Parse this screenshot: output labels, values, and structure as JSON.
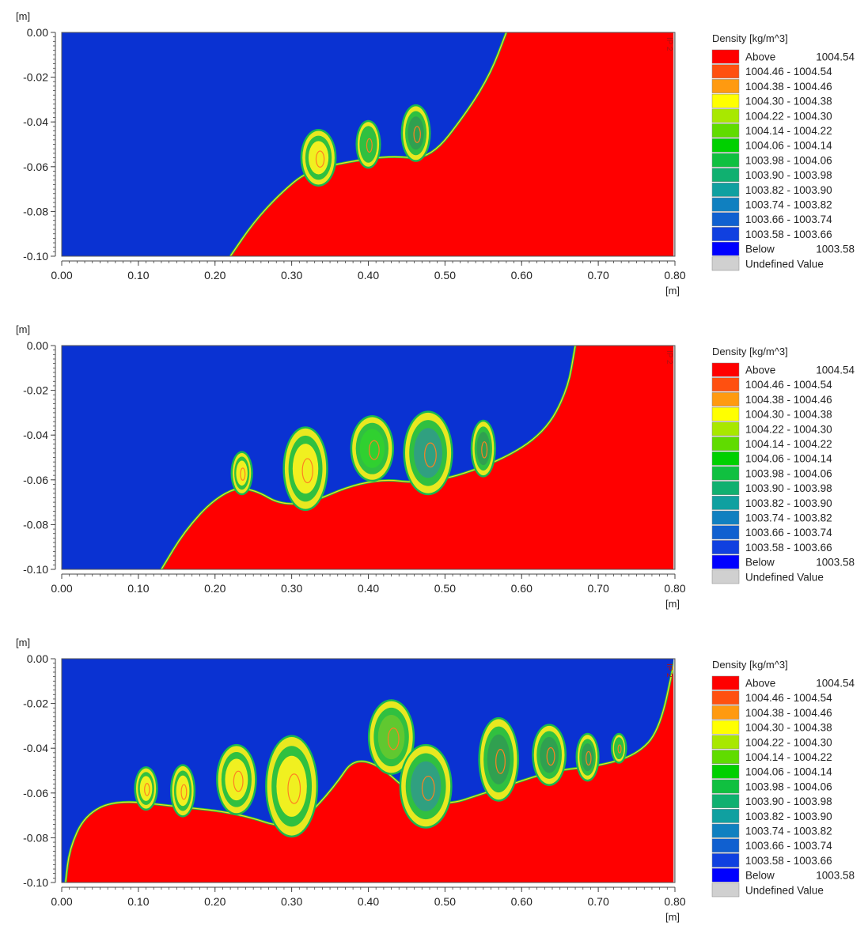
{
  "chart_data": [
    {
      "type": "heatmap",
      "title": "",
      "xlabel": "[m]",
      "ylabel": "[m]",
      "xlim": [
        0.0,
        0.8
      ],
      "ylim": [
        -0.1,
        0.0
      ],
      "xticks": [
        "0.00",
        "0.10",
        "0.20",
        "0.30",
        "0.40",
        "0.50",
        "0.60",
        "0.70",
        "0.80"
      ],
      "yticks": [
        "0.00",
        "-0.02",
        "-0.04",
        "-0.06",
        "-0.08",
        "-0.10"
      ],
      "side_label": "IP 2",
      "interface": [
        [
          0.22,
          -0.1
        ],
        [
          0.25,
          -0.085
        ],
        [
          0.285,
          -0.072
        ],
        [
          0.32,
          -0.062
        ],
        [
          0.37,
          -0.058
        ],
        [
          0.43,
          -0.055
        ],
        [
          0.48,
          -0.057
        ],
        [
          0.53,
          -0.035
        ],
        [
          0.56,
          -0.018
        ],
        [
          0.58,
          0.0
        ]
      ],
      "vortices": [
        {
          "x": 0.335,
          "y": -0.056,
          "rx": 0.021,
          "ry": 0.012,
          "core": "#f0f020"
        },
        {
          "x": 0.4,
          "y": -0.05,
          "rx": 0.014,
          "ry": 0.01,
          "core": "#30c040"
        },
        {
          "x": 0.462,
          "y": -0.045,
          "rx": 0.017,
          "ry": 0.012,
          "core": "#30a050"
        }
      ]
    },
    {
      "type": "heatmap",
      "title": "",
      "xlabel": "[m]",
      "ylabel": "[m]",
      "xlim": [
        0.0,
        0.8
      ],
      "ylim": [
        -0.1,
        0.0
      ],
      "xticks": [
        "0.00",
        "0.10",
        "0.20",
        "0.30",
        "0.40",
        "0.50",
        "0.60",
        "0.70",
        "0.80"
      ],
      "yticks": [
        "0.00",
        "-0.02",
        "-0.04",
        "-0.06",
        "-0.08",
        "-0.10"
      ],
      "side_label": "IP 2",
      "interface": [
        [
          0.13,
          -0.1
        ],
        [
          0.16,
          -0.083
        ],
        [
          0.2,
          -0.068
        ],
        [
          0.24,
          -0.062
        ],
        [
          0.3,
          -0.074
        ],
        [
          0.4,
          -0.059
        ],
        [
          0.48,
          -0.062
        ],
        [
          0.57,
          -0.052
        ],
        [
          0.63,
          -0.039
        ],
        [
          0.66,
          -0.02
        ],
        [
          0.67,
          0.0
        ]
      ],
      "vortices": [
        {
          "x": 0.235,
          "y": -0.057,
          "rx": 0.012,
          "ry": 0.009,
          "core": "#f0f020"
        },
        {
          "x": 0.318,
          "y": -0.055,
          "rx": 0.027,
          "ry": 0.018,
          "core": "#f0f020"
        },
        {
          "x": 0.405,
          "y": -0.046,
          "rx": 0.026,
          "ry": 0.014,
          "core": "#30d030"
        },
        {
          "x": 0.478,
          "y": -0.048,
          "rx": 0.03,
          "ry": 0.018,
          "core": "#30a080"
        },
        {
          "x": 0.55,
          "y": -0.046,
          "rx": 0.014,
          "ry": 0.012,
          "core": "#30a050"
        }
      ]
    },
    {
      "type": "heatmap",
      "title": "",
      "xlabel": "[m]",
      "ylabel": "[m]",
      "xlim": [
        0.0,
        0.8
      ],
      "ylim": [
        -0.1,
        0.0
      ],
      "xticks": [
        "0.00",
        "0.10",
        "0.20",
        "0.30",
        "0.40",
        "0.50",
        "0.60",
        "0.70",
        "0.80"
      ],
      "yticks": [
        "0.00",
        "-0.02",
        "-0.04",
        "-0.06",
        "-0.08",
        "-0.10"
      ],
      "side_label": "IP 2",
      "interface": [
        [
          0.005,
          -0.1
        ],
        [
          0.01,
          -0.085
        ],
        [
          0.03,
          -0.07
        ],
        [
          0.07,
          -0.063
        ],
        [
          0.15,
          -0.066
        ],
        [
          0.23,
          -0.069
        ],
        [
          0.3,
          -0.077
        ],
        [
          0.35,
          -0.06
        ],
        [
          0.39,
          -0.04
        ],
        [
          0.48,
          -0.068
        ],
        [
          0.57,
          -0.058
        ],
        [
          0.64,
          -0.05
        ],
        [
          0.7,
          -0.048
        ],
        [
          0.75,
          -0.043
        ],
        [
          0.78,
          -0.032
        ],
        [
          0.8,
          0.0
        ]
      ],
      "vortices": [
        {
          "x": 0.11,
          "y": -0.058,
          "rx": 0.013,
          "ry": 0.009,
          "core": "#f0f020"
        },
        {
          "x": 0.158,
          "y": -0.059,
          "rx": 0.014,
          "ry": 0.011,
          "core": "#f0f020"
        },
        {
          "x": 0.228,
          "y": -0.054,
          "rx": 0.024,
          "ry": 0.015,
          "core": "#f0f020"
        },
        {
          "x": 0.3,
          "y": -0.057,
          "rx": 0.032,
          "ry": 0.022,
          "core": "#f0f020"
        },
        {
          "x": 0.43,
          "y": -0.035,
          "rx": 0.028,
          "ry": 0.016,
          "core": "#60c830"
        },
        {
          "x": 0.475,
          "y": -0.057,
          "rx": 0.032,
          "ry": 0.018,
          "core": "#30a080"
        },
        {
          "x": 0.57,
          "y": -0.045,
          "rx": 0.024,
          "ry": 0.018,
          "core": "#30a050"
        },
        {
          "x": 0.636,
          "y": -0.043,
          "rx": 0.02,
          "ry": 0.013,
          "core": "#30a050"
        },
        {
          "x": 0.686,
          "y": -0.044,
          "rx": 0.013,
          "ry": 0.01,
          "core": "#30a050"
        },
        {
          "x": 0.727,
          "y": -0.04,
          "rx": 0.008,
          "ry": 0.006,
          "core": "#30c040"
        }
      ]
    }
  ],
  "legend": {
    "title": "Density [kg/m^3]",
    "items": [
      {
        "label": "Above",
        "value": "1004.54",
        "color": "#ff0000"
      },
      {
        "label": "1004.46 - 1004.54",
        "value": "",
        "color": "#ff5010"
      },
      {
        "label": "1004.38 - 1004.46",
        "value": "",
        "color": "#ff9a10"
      },
      {
        "label": "1004.30 - 1004.38",
        "value": "",
        "color": "#ffff00"
      },
      {
        "label": "1004.22 - 1004.30",
        "value": "",
        "color": "#a8e800"
      },
      {
        "label": "1004.14 - 1004.22",
        "value": "",
        "color": "#60dc00"
      },
      {
        "label": "1004.06 - 1004.14",
        "value": "",
        "color": "#00d000"
      },
      {
        "label": "1003.98 - 1004.06",
        "value": "",
        "color": "#10c040"
      },
      {
        "label": "1003.90 - 1003.98",
        "value": "",
        "color": "#10b070"
      },
      {
        "label": "1003.82 - 1003.90",
        "value": "",
        "color": "#10a0a0"
      },
      {
        "label": "1003.74 - 1003.82",
        "value": "",
        "color": "#1080c0"
      },
      {
        "label": "1003.66 - 1003.74",
        "value": "",
        "color": "#1060d0"
      },
      {
        "label": "1003.58 - 1003.66",
        "value": "",
        "color": "#1040e0"
      },
      {
        "label": "Below",
        "value": "1003.58",
        "color": "#0000ff"
      },
      {
        "label": "Undefined Value",
        "value": "",
        "color": "#d0d0d0"
      }
    ]
  },
  "colors": {
    "light_fluid": "#0a32d2",
    "dense_fluid": "#ff0000"
  }
}
